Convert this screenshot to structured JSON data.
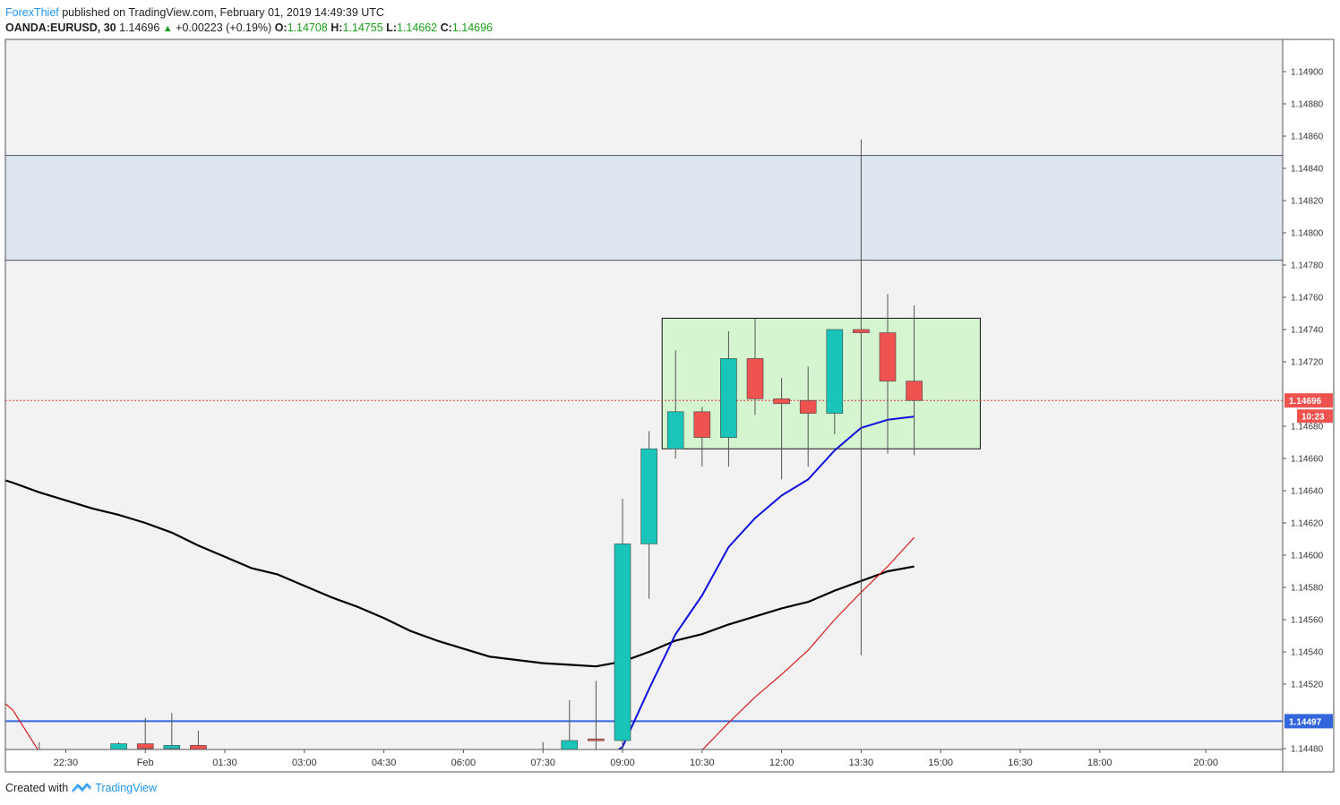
{
  "header": {
    "author": "ForexThief",
    "published": " published on TradingView.com, February 01, 2019 14:49:39 UTC"
  },
  "symbol": {
    "name": "OANDA:EURUSD, 30",
    "last": "1.14696",
    "change": "+0.00223 (+0.19%)",
    "o_label": "O:",
    "o": "1.14708",
    "h_label": "H:",
    "h": "1.14755",
    "l_label": "L:",
    "l": "1.14662",
    "c_label": "C:",
    "c": "1.14696"
  },
  "footer": {
    "created": "Created with",
    "brand": "TradingView"
  },
  "colors": {
    "bull": "#19c4b8",
    "bear": "#ef5350",
    "ema_fast": "#1010e0",
    "ema_slow": "#d81b1b",
    "sma": "#000000",
    "support": "#3366dd",
    "zone": "#dde5ef",
    "range_box": "#d4f5d0"
  },
  "chart_data": {
    "type": "candlestick",
    "symbol": "OANDA:EURUSD",
    "timeframe": "30",
    "ylim": [
      1.14475,
      1.14925
    ],
    "y_ticks": [
      "1.14900",
      "1.14880",
      "1.14860",
      "1.14840",
      "1.14820",
      "1.14800",
      "1.14780",
      "1.14760",
      "1.14740",
      "1.14720",
      "1.14680",
      "1.14660",
      "1.14640",
      "1.14620",
      "1.14600",
      "1.14580",
      "1.14560",
      "1.14540",
      "1.14520",
      "1.14480"
    ],
    "x_ticks": [
      {
        "label": "22:30",
        "i": 2
      },
      {
        "label": "Feb",
        "i": 5
      },
      {
        "label": "01:30",
        "i": 8
      },
      {
        "label": "03:00",
        "i": 11
      },
      {
        "label": "04:30",
        "i": 14
      },
      {
        "label": "06:00",
        "i": 17
      },
      {
        "label": "07:30",
        "i": 20
      },
      {
        "label": "09:00",
        "i": 23
      },
      {
        "label": "10:30",
        "i": 26
      },
      {
        "label": "12:00",
        "i": 29
      },
      {
        "label": "13:30",
        "i": 32
      },
      {
        "label": "15:00",
        "i": 35
      },
      {
        "label": "16:30",
        "i": 38
      },
      {
        "label": "18:00",
        "i": 41
      },
      {
        "label": "20:00",
        "i": 45
      }
    ],
    "candles": [
      {
        "i": 1,
        "o": 1.14473,
        "h": 1.14484,
        "l": 1.14473,
        "c": 1.14474
      },
      {
        "i": 4,
        "o": 1.14478,
        "h": 1.14484,
        "l": 1.14478,
        "c": 1.14483
      },
      {
        "i": 5,
        "o": 1.14483,
        "h": 1.14499,
        "l": 1.14478,
        "c": 1.1448
      },
      {
        "i": 6,
        "o": 1.1448,
        "h": 1.14502,
        "l": 1.14475,
        "c": 1.14482
      },
      {
        "i": 7,
        "o": 1.14482,
        "h": 1.14491,
        "l": 1.14476,
        "c": 1.14477
      },
      {
        "i": 20,
        "o": 1.14476,
        "h": 1.14484,
        "l": 1.14474,
        "c": 1.14477
      },
      {
        "i": 21,
        "o": 1.14477,
        "h": 1.1451,
        "l": 1.14476,
        "c": 1.14485
      },
      {
        "i": 22,
        "o": 1.14486,
        "h": 1.14522,
        "l": 1.14476,
        "c": 1.14485
      },
      {
        "i": 23,
        "o": 1.14485,
        "h": 1.14635,
        "l": 1.14475,
        "c": 1.14607
      },
      {
        "i": 24,
        "o": 1.14607,
        "h": 1.14677,
        "l": 1.14573,
        "c": 1.14666
      },
      {
        "i": 25,
        "o": 1.14666,
        "h": 1.14727,
        "l": 1.1466,
        "c": 1.14689
      },
      {
        "i": 26,
        "o": 1.14689,
        "h": 1.14692,
        "l": 1.14655,
        "c": 1.14673
      },
      {
        "i": 27,
        "o": 1.14673,
        "h": 1.14739,
        "l": 1.14655,
        "c": 1.14722
      },
      {
        "i": 28,
        "o": 1.14722,
        "h": 1.14747,
        "l": 1.14687,
        "c": 1.14697
      },
      {
        "i": 29,
        "o": 1.14697,
        "h": 1.1471,
        "l": 1.14647,
        "c": 1.14694
      },
      {
        "i": 30,
        "o": 1.14696,
        "h": 1.14717,
        "l": 1.14655,
        "c": 1.14688
      },
      {
        "i": 31,
        "o": 1.14688,
        "h": 1.1474,
        "l": 1.14675,
        "c": 1.1474
      },
      {
        "i": 32,
        "o": 1.1474,
        "h": 1.14858,
        "l": 1.14538,
        "c": 1.14738
      },
      {
        "i": 33,
        "o": 1.14738,
        "h": 1.14762,
        "l": 1.14663,
        "c": 1.14708
      },
      {
        "i": 34,
        "o": 1.14708,
        "h": 1.14755,
        "l": 1.14662,
        "c": 1.14696
      }
    ],
    "sma_black": {
      "x": [
        -5,
        -3,
        -2,
        -1,
        0,
        1,
        2,
        3,
        4,
        5,
        6,
        7,
        8,
        9,
        10,
        11,
        12,
        13,
        14,
        15,
        16,
        17,
        18,
        19,
        20,
        21,
        22,
        23,
        24,
        25,
        26,
        27,
        28,
        29,
        30,
        31,
        32,
        33,
        34
      ],
      "y": [
        1.14665,
        1.1466,
        1.14655,
        1.1465,
        1.14645,
        1.14639,
        1.14634,
        1.14629,
        1.14625,
        1.1462,
        1.14614,
        1.14606,
        1.14599,
        1.14592,
        1.14588,
        1.14581,
        1.14574,
        1.14568,
        1.14561,
        1.14553,
        1.14547,
        1.14542,
        1.14537,
        1.14535,
        1.14533,
        1.14532,
        1.14531,
        1.14534,
        1.1454,
        1.14547,
        1.14551,
        1.14557,
        1.14562,
        1.14567,
        1.14571,
        1.14578,
        1.14584,
        1.1459,
        1.14593
      ]
    },
    "ema_red": {
      "x": [
        -5,
        -3,
        -2,
        -1,
        0,
        1,
        2,
        3,
        4,
        5,
        25,
        26,
        27,
        28,
        29,
        30,
        31,
        32,
        33,
        34
      ],
      "y": [
        1.14598,
        1.14568,
        1.14543,
        1.14518,
        1.14504,
        1.14478,
        1.1447,
        1.14466,
        1.14466,
        1.1447,
        1.14466,
        1.14479,
        1.14496,
        1.14512,
        1.14526,
        1.14541,
        1.1456,
        1.14577,
        1.14593,
        1.14611
      ]
    },
    "ema_blue": {
      "x": [
        -5,
        -3,
        -2,
        -1,
        0,
        1,
        2,
        22,
        23,
        24,
        25,
        26,
        27,
        28,
        29,
        30,
        31,
        32,
        33,
        34
      ],
      "y": [
        1.14484,
        1.1448,
        1.14478,
        1.14476,
        1.14475,
        1.14474,
        1.14473,
        1.1447,
        1.14481,
        1.14517,
        1.14551,
        1.14575,
        1.14605,
        1.14623,
        1.14637,
        1.14647,
        1.14665,
        1.14679,
        1.14684,
        1.14686
      ]
    },
    "resistance_zone": {
      "top": 1.14848,
      "bottom": 1.14783
    },
    "range_box": {
      "i_start": 25,
      "i_end": 37,
      "top": 1.14747,
      "bottom": 1.14666
    },
    "support_line": {
      "value": 1.14497,
      "label": "1.14497"
    },
    "last_price": {
      "value": 1.14696,
      "label": "1.14696",
      "countdown": "10:23"
    }
  }
}
